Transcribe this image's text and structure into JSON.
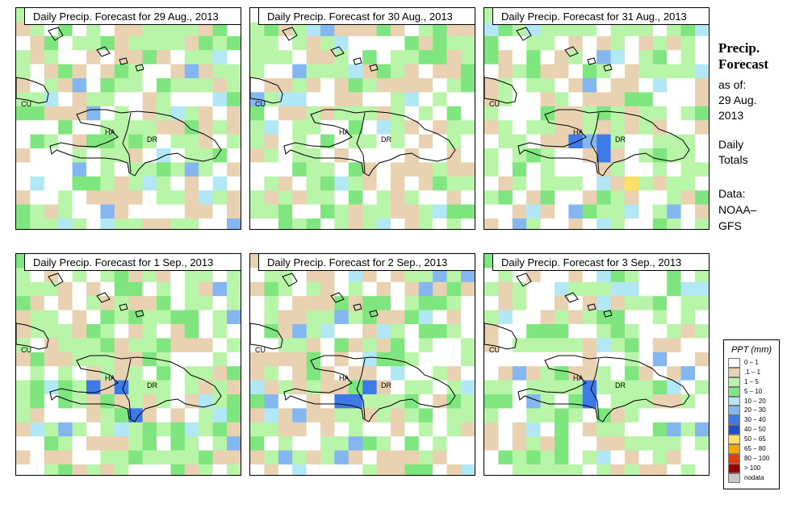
{
  "title_line1": "Precip.",
  "title_line2": "Forecast",
  "as_of_label": "as of:",
  "as_of_date1": "29 Aug.",
  "as_of_date2": "2013",
  "period_line1": "Daily",
  "period_line2": "Totals",
  "data_label": "Data:",
  "data_source1": "NOAA–",
  "data_source2": "GFS",
  "labels": {
    "cuba": "CU",
    "haiti": "HA",
    "dr": "DR"
  },
  "panels": [
    {
      "title": "Daily Precip. Forecast for  29 Aug., 2013",
      "seed": 11
    },
    {
      "title": "Daily Precip. Forecast for  30 Aug., 2013",
      "seed": 23
    },
    {
      "title": "Daily Precip. Forecast for  31 Aug., 2013",
      "seed": 37
    },
    {
      "title": "Daily Precip. Forecast for  1 Sep., 2013",
      "seed": 41
    },
    {
      "title": "Daily Precip. Forecast for  2 Sep., 2013",
      "seed": 53
    },
    {
      "title": "Daily Precip. Forecast for  3 Sep., 2013",
      "seed": 67
    }
  ],
  "legend": {
    "title": "PPT (mm)",
    "items": [
      {
        "label": "0 – 1",
        "color": "#ffffff"
      },
      {
        "label": ".1 – 1",
        "color": "#e8d2b2"
      },
      {
        "label": "1 – 5",
        "color": "#b9f5a8"
      },
      {
        "label": "5 – 10",
        "color": "#7fe67f"
      },
      {
        "label": "10 – 20",
        "color": "#b2e8f5"
      },
      {
        "label": "20 – 30",
        "color": "#84b6f0"
      },
      {
        "label": "30 – 40",
        "color": "#3e7ae6"
      },
      {
        "label": "40 – 50",
        "color": "#1f4fd1"
      },
      {
        "label": "50 – 65",
        "color": "#ffe066"
      },
      {
        "label": "65 – 80",
        "color": "#ffa500"
      },
      {
        "label": "80 – 100",
        "color": "#e63b00"
      },
      {
        "label": "> 100",
        "color": "#9c0000"
      },
      {
        "label": "nodata",
        "color": "#c8c8c8"
      }
    ]
  }
}
